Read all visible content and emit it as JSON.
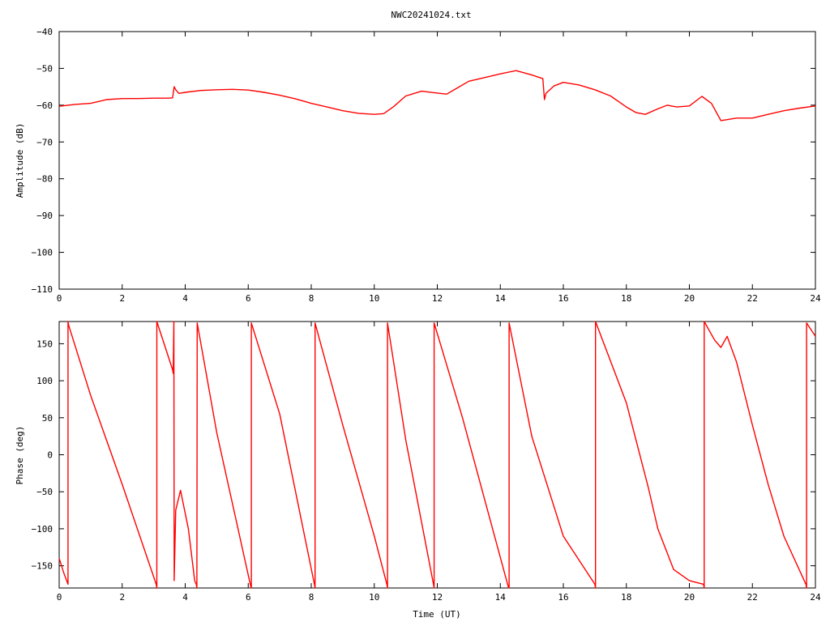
{
  "chart_data": [
    {
      "type": "line",
      "title": "NWC20241024.txt",
      "xlabel": "",
      "ylabel": "Amplitude (dB)",
      "xlim": [
        0,
        24
      ],
      "ylim": [
        -110,
        -40
      ],
      "xticks": [
        "0",
        "2",
        "4",
        "6",
        "8",
        "10",
        "12",
        "14",
        "16",
        "18",
        "20",
        "22",
        "24"
      ],
      "yticks": [
        "−40",
        "−50",
        "−60",
        "−70",
        "−80",
        "−90",
        "−100",
        "−110"
      ],
      "color": "#ff0000",
      "series": [
        {
          "x": [
            0,
            0.5,
            1.0,
            1.5,
            2.0,
            2.5,
            3.0,
            3.5,
            3.6,
            3.65,
            3.7,
            3.8,
            4.0,
            4.5,
            5.0,
            5.5,
            6.0,
            6.5,
            7.0,
            7.5,
            8.0,
            8.5,
            9.0,
            9.5,
            10.0,
            10.3,
            10.6,
            11.0,
            11.5,
            12.0,
            12.3,
            12.6,
            13.0,
            13.5,
            14.0,
            14.5,
            15.0,
            15.35,
            15.4,
            15.45,
            15.7,
            16.0,
            16.5,
            17.0,
            17.5,
            18.0,
            18.3,
            18.6,
            19.0,
            19.3,
            19.6,
            20.0,
            20.4,
            20.7,
            21.0,
            21.5,
            22.0,
            22.5,
            23.0,
            23.5,
            24.0
          ],
          "y": [
            -60.3,
            -59.8,
            -59.5,
            -58.5,
            -58.2,
            -58.2,
            -58.1,
            -58.1,
            -58.0,
            -55.0,
            -55.8,
            -56.8,
            -56.5,
            -56.0,
            -55.8,
            -55.7,
            -55.9,
            -56.5,
            -57.3,
            -58.3,
            -59.5,
            -60.5,
            -61.5,
            -62.2,
            -62.5,
            -62.3,
            -60.5,
            -57.5,
            -56.2,
            -56.7,
            -57.0,
            -55.5,
            -53.5,
            -52.5,
            -51.5,
            -50.6,
            -51.8,
            -52.8,
            -58.5,
            -56.8,
            -54.8,
            -53.8,
            -54.5,
            -55.8,
            -57.5,
            -60.5,
            -62.0,
            -62.5,
            -61.0,
            -60.0,
            -60.5,
            -60.2,
            -57.6,
            -59.5,
            -64.2,
            -63.5,
            -63.5,
            -62.5,
            -61.5,
            -60.8,
            -60.2
          ]
        }
      ]
    },
    {
      "type": "line",
      "title": "",
      "xlabel": "Time (UT)",
      "ylabel": "Phase (deg)",
      "xlim": [
        0,
        24
      ],
      "ylim": [
        -180,
        180
      ],
      "xticks": [
        "0",
        "2",
        "4",
        "6",
        "8",
        "10",
        "12",
        "14",
        "16",
        "18",
        "20",
        "22",
        "24"
      ],
      "yticks": [
        "150",
        "100",
        "50",
        "0",
        "−50",
        "−100",
        "−150"
      ],
      "color": "#ff0000",
      "series": [
        {
          "x": [
            0,
            0.15,
            0.28,
            0.28,
            0.3,
            1.0,
            2.0,
            3.08,
            3.1,
            3.1,
            3.6,
            3.62,
            3.64,
            3.65,
            3.7,
            3.85,
            4.1,
            4.3,
            4.35,
            4.37,
            4.38,
            5.0,
            6.08,
            6.1,
            6.1,
            7.0,
            8.1,
            8.12,
            8.12,
            9.0,
            10.0,
            10.4,
            10.42,
            10.42,
            11.0,
            11.88,
            11.9,
            11.9,
            12.8,
            14.25,
            14.28,
            14.28,
            15.0,
            16.0,
            17.0,
            17.02,
            17.02,
            18.0,
            18.7,
            19.0,
            19.5,
            20.0,
            20.45,
            20.47,
            20.47,
            20.8,
            21.0,
            21.2,
            21.5,
            22.0,
            22.5,
            23.0,
            23.7,
            23.72,
            23.72,
            24.0
          ],
          "y": [
            -140,
            -160,
            -175,
            180,
            175,
            80,
            -40,
            -175,
            -180,
            180,
            115,
            110,
            180,
            -170,
            -75,
            -48,
            -100,
            -170,
            -175,
            -180,
            178,
            30,
            -178,
            -180,
            178,
            55,
            -175,
            -180,
            178,
            40,
            -110,
            -175,
            -180,
            178,
            20,
            -175,
            -180,
            178,
            50,
            -178,
            -180,
            178,
            25,
            -110,
            -175,
            -180,
            180,
            70,
            -45,
            -100,
            -155,
            -170,
            -175,
            -180,
            180,
            155,
            145,
            160,
            125,
            40,
            -40,
            -110,
            -175,
            -180,
            178,
            160
          ]
        }
      ]
    }
  ]
}
